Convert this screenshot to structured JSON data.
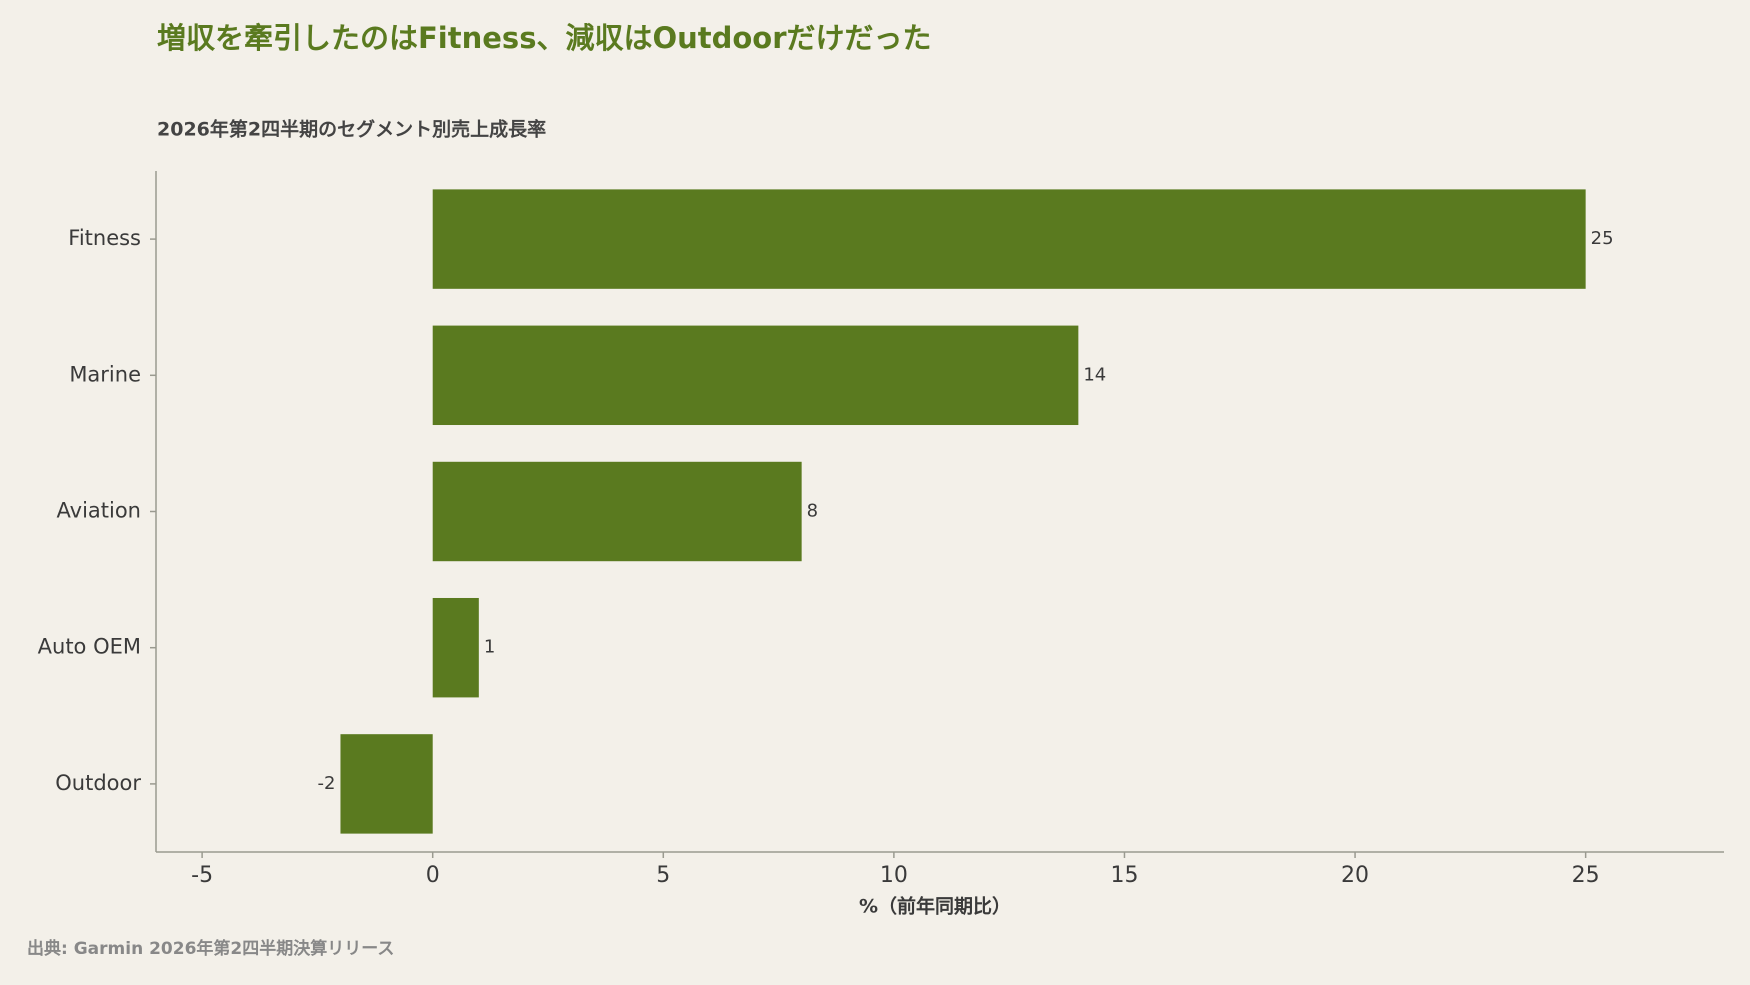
{
  "chart_data": {
    "type": "barh",
    "title": "増収を牽引したのはFitness、減収はOutdoorだけだった",
    "subtitle": "2026年第2四半期のセグメント別売上成長率",
    "x_label": "%（前年同期比）",
    "source": "出典: Garmin 2026年第2四半期決算リリース",
    "categories": [
      "Fitness",
      "Marine",
      "Aviation",
      "Auto OEM",
      "Outdoor"
    ],
    "values": [
      25,
      14,
      8,
      1,
      -2
    ],
    "color": "#5a7a1f",
    "xlim": [
      -6,
      28
    ],
    "xticks": [
      -5,
      0,
      5,
      10,
      15,
      20,
      25
    ]
  }
}
